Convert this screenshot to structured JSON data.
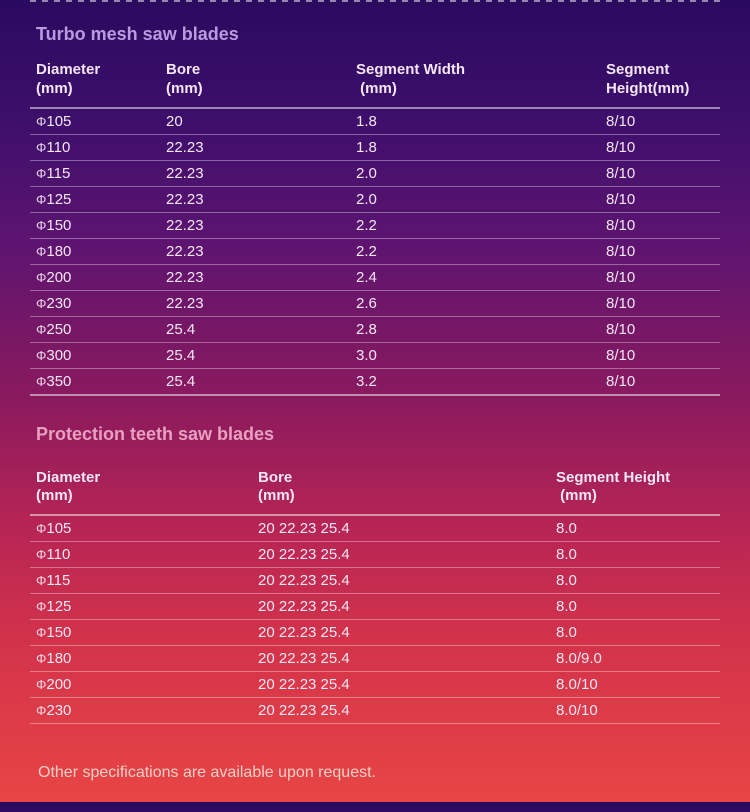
{
  "turbo": {
    "title": "Turbo mesh saw blades",
    "headers": [
      "Diameter (mm)",
      "Bore (mm)",
      "Segment Width  (mm)",
      "Segment Height(mm)"
    ],
    "rows": [
      {
        "d": "105",
        "b": "20",
        "sw": "1.8",
        "sh": "8/10"
      },
      {
        "d": "110",
        "b": "22.23",
        "sw": "1.8",
        "sh": "8/10"
      },
      {
        "d": "115",
        "b": "22.23",
        "sw": "2.0",
        "sh": "8/10"
      },
      {
        "d": "125",
        "b": "22.23",
        "sw": "2.0",
        "sh": "8/10"
      },
      {
        "d": "150",
        "b": "22.23",
        "sw": "2.2",
        "sh": "8/10"
      },
      {
        "d": "180",
        "b": "22.23",
        "sw": "2.2",
        "sh": "8/10"
      },
      {
        "d": "200",
        "b": "22.23",
        "sw": "2.4",
        "sh": "8/10"
      },
      {
        "d": "230",
        "b": "22.23",
        "sw": "2.6",
        "sh": "8/10"
      },
      {
        "d": "250",
        "b": "25.4",
        "sw": "2.8",
        "sh": "8/10"
      },
      {
        "d": "300",
        "b": "25.4",
        "sw": "3.0",
        "sh": "8/10"
      },
      {
        "d": "350",
        "b": "25.4",
        "sw": "3.2",
        "sh": "8/10"
      }
    ]
  },
  "protection": {
    "title": "Protection teeth saw blades",
    "headers": [
      "Diameter (mm)",
      "Bore (mm)",
      "Segment Height  (mm)"
    ],
    "rows": [
      {
        "d": "105",
        "b": "20 22.23 25.4",
        "sh": "8.0"
      },
      {
        "d": "110",
        "b": "20 22.23 25.4",
        "sh": "8.0"
      },
      {
        "d": "115",
        "b": "20 22.23 25.4",
        "sh": "8.0"
      },
      {
        "d": "125",
        "b": "20 22.23 25.4",
        "sh": "8.0"
      },
      {
        "d": "150",
        "b": "20 22.23 25.4",
        "sh": "8.0"
      },
      {
        "d": "180",
        "b": "20 22.23 25.4",
        "sh": "8.0/9.0"
      },
      {
        "d": "200",
        "b": "20 22.23 25.4",
        "sh": "8.0/10"
      },
      {
        "d": "230",
        "b": "20 22.23 25.4",
        "sh": "8.0/10"
      }
    ]
  },
  "footer": "Other specifications are available upon request."
}
